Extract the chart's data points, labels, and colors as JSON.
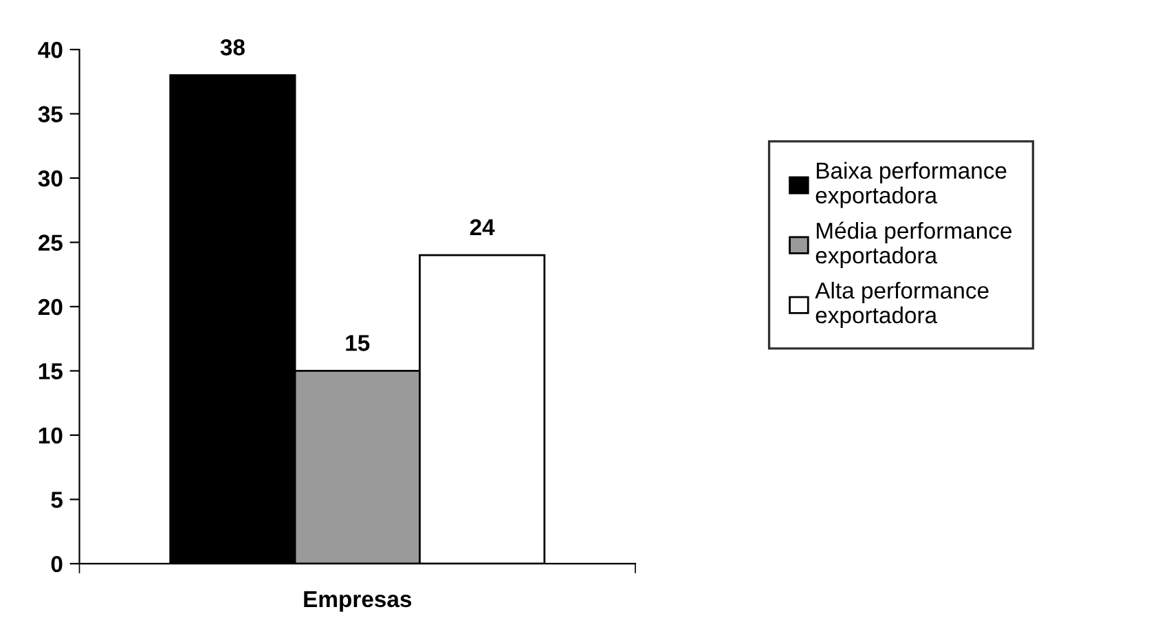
{
  "chart_data": {
    "type": "bar",
    "categories": [
      "Empresas"
    ],
    "series": [
      {
        "name": "Baixa performance\nexportadora",
        "color": "#000000",
        "values": [
          38
        ]
      },
      {
        "name": "Média performance\nexportadora",
        "color": "#9a9a9a",
        "values": [
          15
        ]
      },
      {
        "name": "Alta performance\nexportadora",
        "color": "#ffffff",
        "values": [
          24
        ]
      }
    ],
    "ylim": [
      0,
      40
    ],
    "yticks": [
      0,
      5,
      10,
      15,
      20,
      25,
      30,
      35,
      40
    ],
    "data_labels": true,
    "legend": "right",
    "grid": false
  }
}
